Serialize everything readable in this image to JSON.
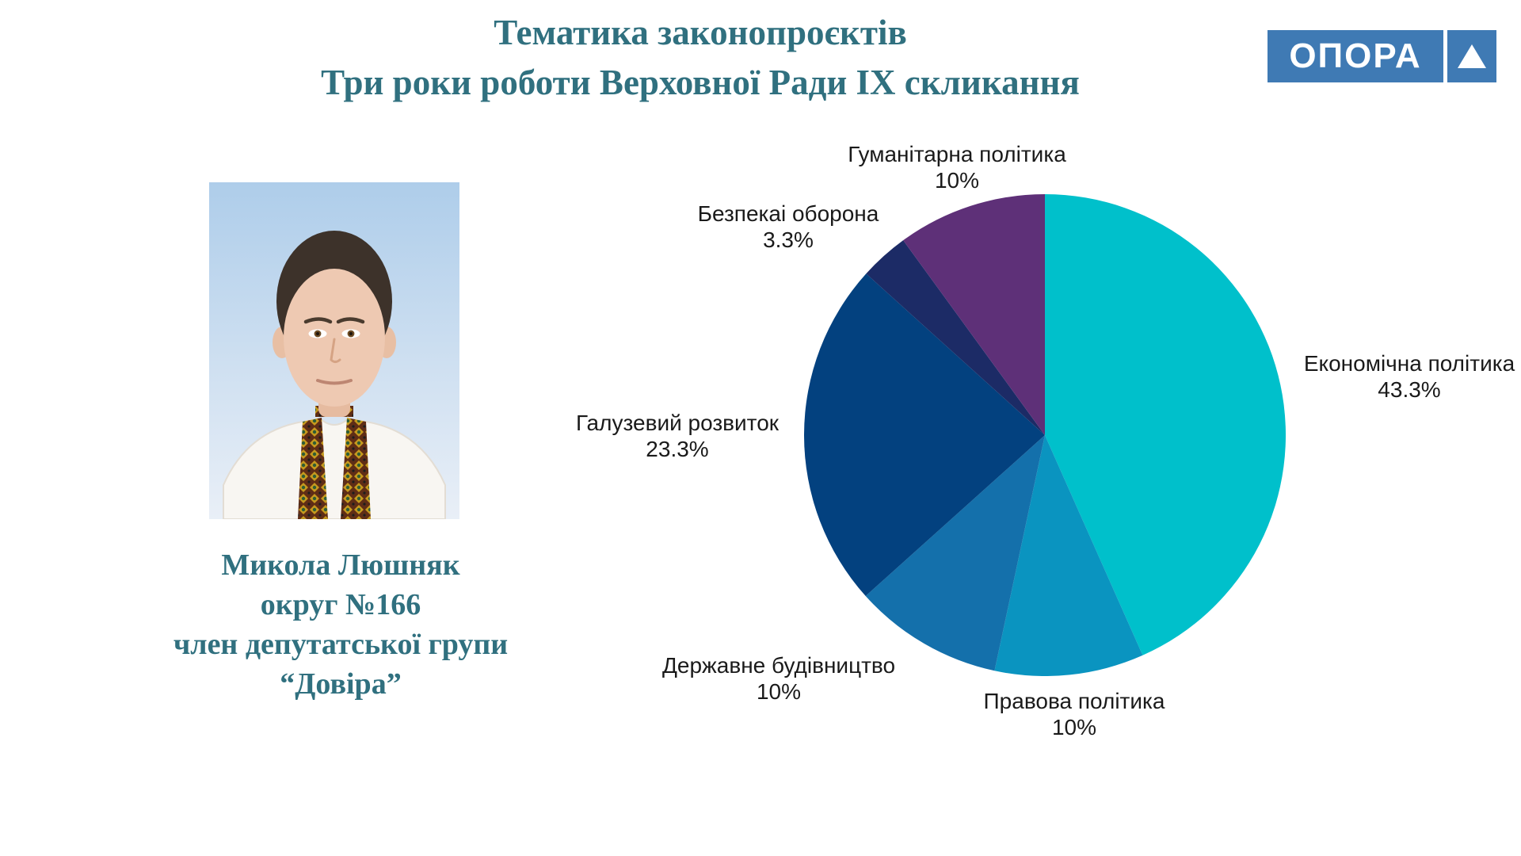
{
  "header": {
    "title_line1": "Тематика законопроєктів",
    "title_line2": "Три роки роботи Верховної Ради IX скликання",
    "title_color": "#30707f"
  },
  "logo": {
    "text": "ОПОРА",
    "bg_color": "#3f7ab4"
  },
  "profile": {
    "name": "Микола Люшняк",
    "district": "округ №166",
    "group_line1": "член депутатської групи",
    "group_line2": "“Довіра”",
    "text_color": "#30707f"
  },
  "chart_data": {
    "type": "pie",
    "title": "Тематика законопроєктів",
    "start_angle_deg": 0,
    "direction": "clockwise",
    "legend_position": "around-slices",
    "slices": [
      {
        "label": "Економічна політика",
        "value": 43.3,
        "pct_label": "43.3%",
        "color": "#00c0cb"
      },
      {
        "label": "Правова політика",
        "value": 10,
        "pct_label": "10%",
        "color": "#0a94c0"
      },
      {
        "label": "Державне будівництво",
        "value": 10,
        "pct_label": "10%",
        "color": "#1470ab"
      },
      {
        "label": "Галузевий розвиток",
        "value": 23.3,
        "pct_label": "23.3%",
        "color": "#03417f"
      },
      {
        "label": "Безпекаі оборона",
        "value": 3.3,
        "pct_label": "3.3%",
        "color": "#1c2b66"
      },
      {
        "label": "Гуманітарна політика",
        "value": 10,
        "pct_label": "10%",
        "color": "#5e3078"
      }
    ]
  }
}
